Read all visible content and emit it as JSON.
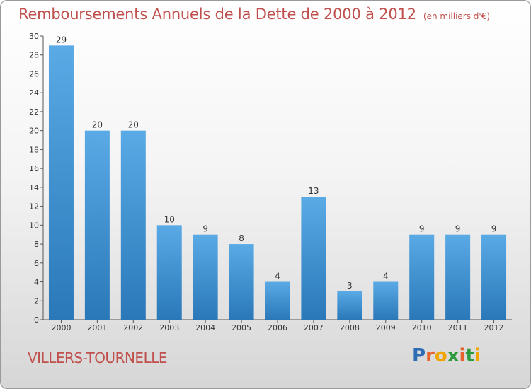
{
  "header": {
    "title": "Remboursements Annuels de la Dette de 2000 à 2012",
    "unit": "(en milliers d'€)"
  },
  "footer": {
    "commune": "VILLERS-TOURNELLE",
    "logo": {
      "letters": [
        "P",
        "r",
        "o",
        "x",
        "i",
        "t",
        "i"
      ],
      "colors": [
        "#2e6db4",
        "#e8632b",
        "#f0a500",
        "#2e9a3e",
        "#e8632b",
        "#2e9a3e",
        "#f0a500"
      ]
    }
  },
  "chart_data": {
    "type": "bar",
    "categories": [
      "2000",
      "2001",
      "2002",
      "2003",
      "2004",
      "2005",
      "2006",
      "2007",
      "2008",
      "2009",
      "2010",
      "2011",
      "2012"
    ],
    "values": [
      29,
      20,
      20,
      10,
      9,
      8,
      4,
      13,
      3,
      4,
      9,
      9,
      9
    ],
    "data_labels": [
      "29",
      "20",
      "20",
      "10",
      "9",
      "8",
      "4",
      "13",
      "3",
      "4",
      "9",
      "9",
      "9"
    ],
    "title": "Remboursements Annuels de la Dette de 2000 à 2012",
    "xlabel": "",
    "ylabel": "",
    "ylim": [
      0,
      30
    ],
    "yticks": [
      0,
      2,
      4,
      6,
      8,
      10,
      12,
      14,
      16,
      18,
      20,
      22,
      24,
      26,
      28,
      30
    ],
    "grid": false,
    "bar_color_top": "#5aaae6",
    "bar_color_bottom": "#2a78b8"
  }
}
